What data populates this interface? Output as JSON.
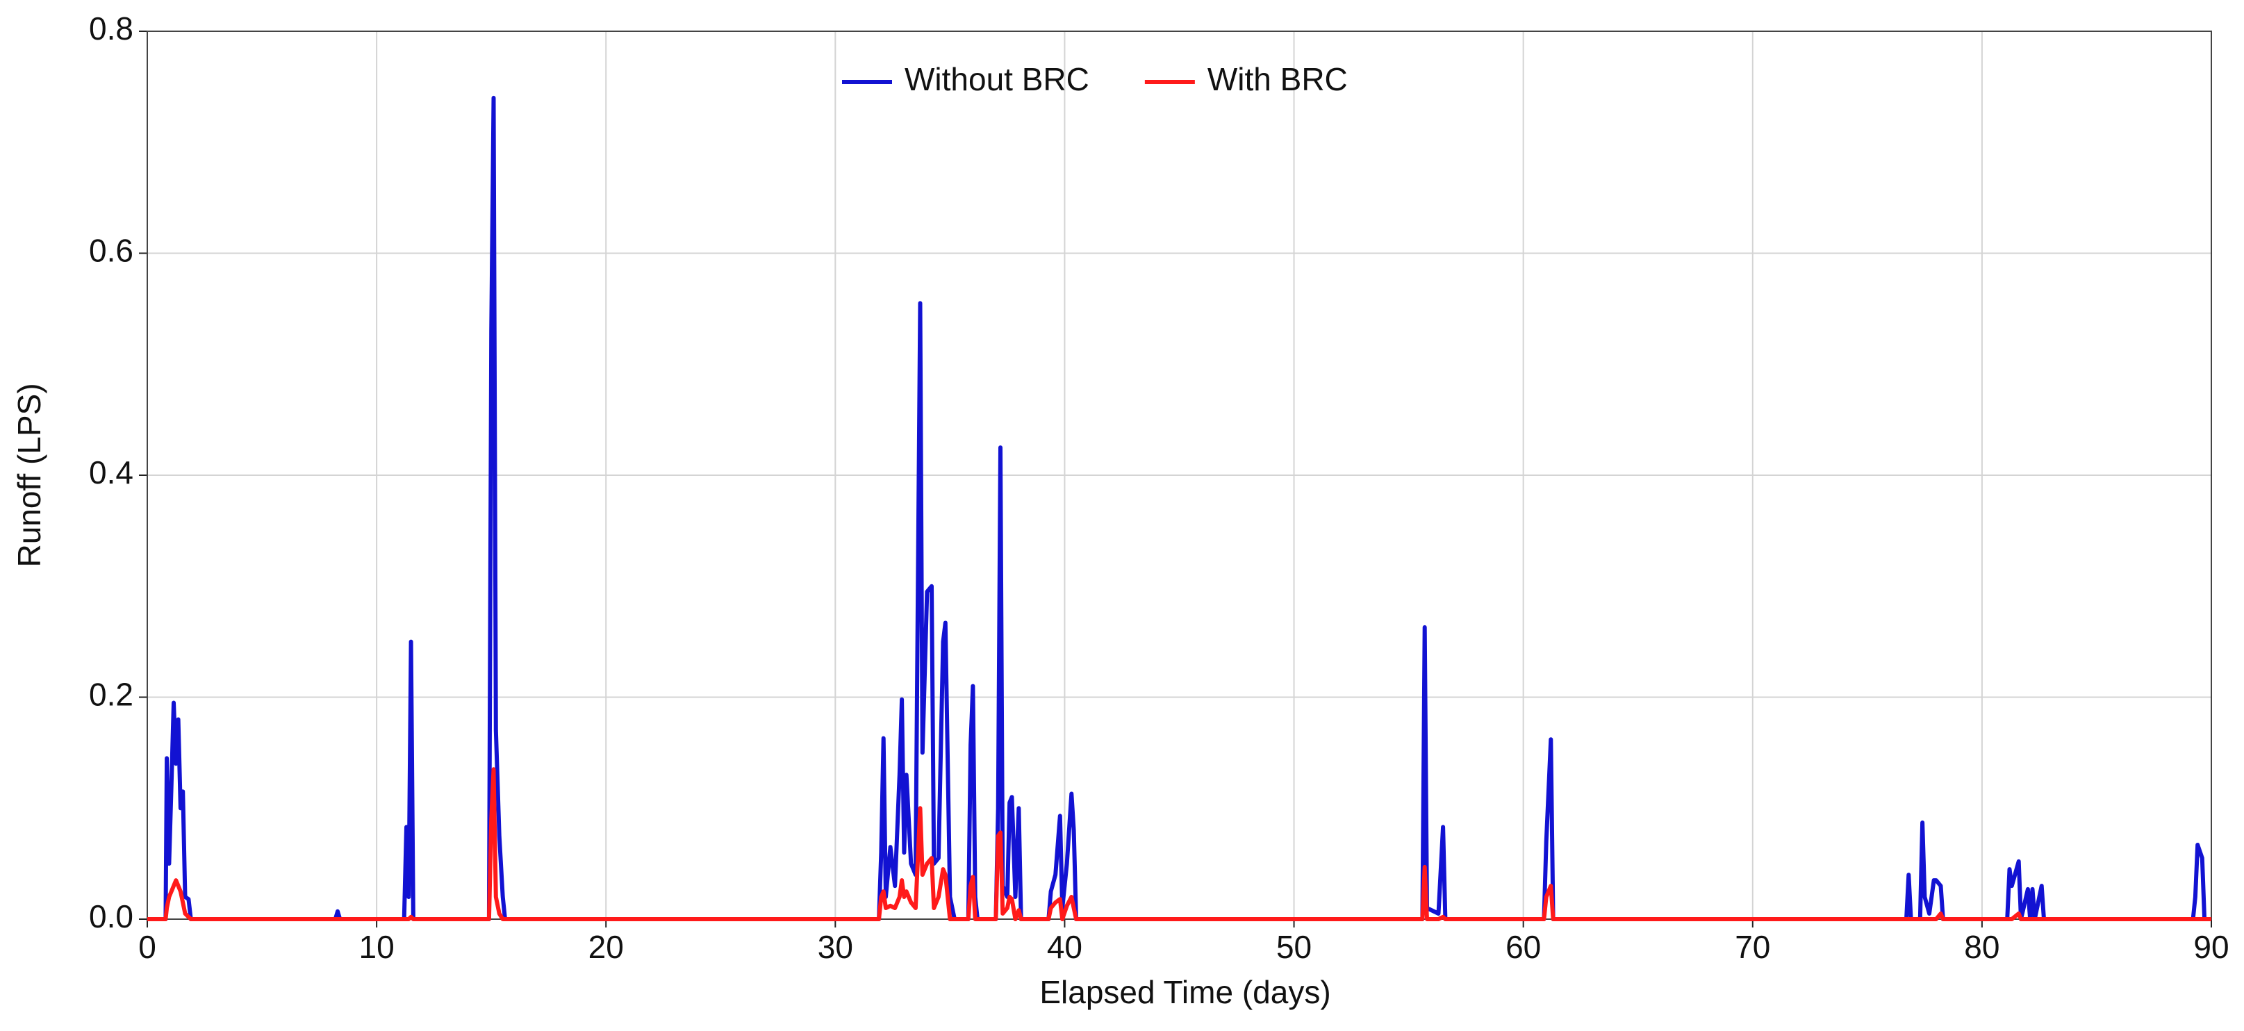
{
  "chart_data": {
    "type": "line",
    "xlabel": "Elapsed Time (days)",
    "ylabel": "Runoff (LPS)",
    "x": [
      0,
      0.8,
      0.85,
      0.95,
      1.05,
      1.15,
      1.25,
      1.35,
      1.45,
      1.55,
      1.65,
      1.8,
      1.9,
      8.2,
      8.3,
      8.4,
      11.2,
      11.3,
      11.4,
      11.5,
      11.6,
      14.9,
      15.0,
      15.1,
      15.2,
      15.35,
      15.5,
      15.6,
      31.9,
      32.0,
      32.1,
      32.2,
      32.4,
      32.6,
      32.8,
      32.9,
      33.0,
      33.1,
      33.3,
      33.5,
      33.7,
      33.8,
      34.0,
      34.2,
      34.3,
      34.5,
      34.7,
      34.8,
      35.0,
      35.2,
      35.8,
      35.9,
      36.0,
      36.1,
      36.2,
      37.0,
      37.1,
      37.2,
      37.3,
      37.5,
      37.6,
      37.7,
      37.85,
      38.0,
      38.1,
      39.3,
      39.4,
      39.6,
      39.8,
      39.9,
      40.1,
      40.3,
      40.4,
      40.5,
      55.6,
      55.7,
      55.8,
      56.3,
      56.5,
      56.6,
      60.9,
      61.0,
      61.2,
      61.3,
      76.7,
      76.8,
      76.9,
      77.3,
      77.4,
      77.5,
      77.7,
      77.9,
      78.0,
      78.2,
      78.3,
      81.1,
      81.2,
      81.3,
      81.6,
      81.7,
      82.0,
      82.1,
      82.2,
      82.3,
      82.5,
      82.6,
      82.7,
      89.2,
      89.3,
      89.4,
      89.6,
      89.7,
      90
    ],
    "series": [
      {
        "name": "Without BRC",
        "color": "#1212d2",
        "values": [
          0,
          0,
          0.145,
          0.05,
          0.12,
          0.195,
          0.14,
          0.18,
          0.1,
          0.115,
          0.02,
          0.018,
          0,
          0,
          0.007,
          0,
          0,
          0.083,
          0.02,
          0.25,
          0,
          0,
          0.53,
          0.74,
          0.17,
          0.075,
          0.02,
          0,
          0,
          0.06,
          0.163,
          0.02,
          0.065,
          0.03,
          0.13,
          0.198,
          0.06,
          0.13,
          0.05,
          0.04,
          0.555,
          0.15,
          0.295,
          0.3,
          0.05,
          0.055,
          0.25,
          0.267,
          0.02,
          0,
          0,
          0.157,
          0.21,
          0.02,
          0,
          0,
          0.1,
          0.425,
          0.03,
          0.02,
          0.105,
          0.11,
          0.02,
          0.1,
          0,
          0,
          0.025,
          0.04,
          0.093,
          0.01,
          0.05,
          0.113,
          0.08,
          0,
          0,
          0.263,
          0.01,
          0.005,
          0.083,
          0,
          0,
          0.07,
          0.162,
          0,
          0,
          0.04,
          0,
          0,
          0.087,
          0.02,
          0.005,
          0.035,
          0.035,
          0.03,
          0,
          0,
          0.045,
          0.03,
          0.052,
          0,
          0.027,
          0,
          0.027,
          0,
          0.02,
          0.03,
          0,
          0,
          0.02,
          0.067,
          0.055,
          0,
          0
        ]
      },
      {
        "name": "With BRC",
        "color": "#ff1a1a",
        "values": [
          0,
          0,
          0.01,
          0.02,
          0.025,
          0.03,
          0.035,
          0.03,
          0.025,
          0.015,
          0.005,
          0.002,
          0,
          0,
          0,
          0,
          0,
          0,
          0,
          0.002,
          0,
          0,
          0.09,
          0.135,
          0.02,
          0.005,
          0,
          0,
          0,
          0.02,
          0.025,
          0.01,
          0.012,
          0.01,
          0.02,
          0.035,
          0.02,
          0.025,
          0.015,
          0.01,
          0.1,
          0.04,
          0.05,
          0.055,
          0.01,
          0.02,
          0.045,
          0.04,
          0,
          0,
          0,
          0.03,
          0.038,
          0,
          0,
          0,
          0.075,
          0.078,
          0.005,
          0.01,
          0.02,
          0.018,
          0,
          0.008,
          0,
          0,
          0.01,
          0.015,
          0.018,
          0,
          0.012,
          0.02,
          0.01,
          0,
          0,
          0.047,
          0,
          0,
          0.002,
          0,
          0,
          0.02,
          0.03,
          0,
          0,
          0,
          0,
          0,
          0,
          0,
          0,
          0,
          0,
          0.005,
          0,
          0,
          0,
          0,
          0.005,
          0,
          0,
          0,
          0,
          0,
          0,
          0,
          0,
          0,
          0,
          0,
          0,
          0,
          0
        ]
      }
    ],
    "xlim": [
      0,
      90
    ],
    "xticks": [
      0,
      10,
      20,
      30,
      40,
      50,
      60,
      70,
      80,
      90
    ],
    "ylim": [
      0,
      0.8
    ],
    "yticks": [
      {
        "value": 0,
        "label": "0.0"
      },
      0.2,
      0.4,
      0.6,
      0.8
    ],
    "grid": true,
    "legend": "upper center"
  }
}
